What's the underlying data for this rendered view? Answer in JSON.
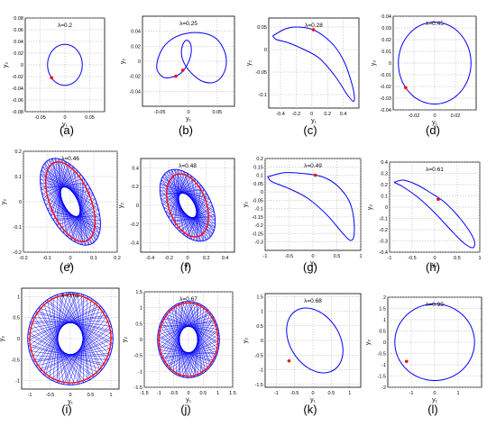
{
  "figure": {
    "panel_labels": [
      "(a)",
      "(b)",
      "(c)",
      "(d)",
      "(e)",
      "(f)",
      "(g)",
      "(h)",
      "(i)",
      "(j)",
      "(k)",
      "(l)"
    ],
    "colors": {
      "curve": "#0000ff",
      "section": "#ff0000",
      "grid": "#b0b0b0",
      "axis": "#000000"
    }
  },
  "chart_data": [
    {
      "type": "line",
      "panel": "(a)",
      "title": "λ=0.2",
      "xlabel": "y₁",
      "ylabel": "y₂",
      "xlim": [
        -0.08,
        0.08
      ],
      "ylim": [
        -0.08,
        0.08
      ],
      "xticks": [
        -0.05,
        0,
        0.05
      ],
      "yticks": [
        -0.08,
        -0.06,
        -0.04,
        -0.02,
        0,
        0.02,
        0.04,
        0.06,
        0.08
      ],
      "xtick_labels": [
        "-0.05",
        "0",
        "0.05"
      ],
      "ytick_labels": [
        "-0.08",
        "-0.06",
        "-0.04",
        "-0.02",
        "0",
        "0.02",
        "0.04",
        "0.06",
        "0.08"
      ],
      "curve": {
        "shape": "ellipse",
        "cx": 0.0,
        "cy": 0.0,
        "rx": 0.035,
        "ry": 0.035
      },
      "marker": [
        -0.027,
        -0.022
      ],
      "grid": true
    },
    {
      "type": "line",
      "panel": "(b)",
      "title": "λ=0.25",
      "xlabel": "y₁",
      "ylabel": "y₂",
      "xlim": [
        -0.08,
        0.08
      ],
      "ylim": [
        -0.06,
        0.06
      ],
      "xticks": [
        -0.05,
        0,
        0.05
      ],
      "yticks": [
        -0.04,
        -0.02,
        0,
        0.02,
        0.04
      ],
      "xtick_labels": [
        "-0.05",
        "0",
        "0.05"
      ],
      "ytick_labels": [
        "-0.04",
        "-0.02",
        "0",
        "0.02",
        "0.04"
      ],
      "curve": {
        "shape": "path",
        "points": [
          [
            -0.022,
            -0.02
          ],
          [
            -0.042,
            -0.022
          ],
          [
            -0.055,
            -0.01
          ],
          [
            -0.05,
            0.01
          ],
          [
            -0.035,
            0.026
          ],
          [
            -0.01,
            0.036
          ],
          [
            0.02,
            0.038
          ],
          [
            0.045,
            0.032
          ],
          [
            0.06,
            0.018
          ],
          [
            0.066,
            0.0
          ],
          [
            0.06,
            -0.018
          ],
          [
            0.045,
            -0.028
          ],
          [
            0.025,
            -0.027
          ],
          [
            0.008,
            -0.018
          ],
          [
            -0.005,
            -0.006
          ],
          [
            -0.012,
            0.008
          ],
          [
            -0.01,
            0.022
          ],
          [
            -0.003,
            0.028
          ],
          [
            0.004,
            0.022
          ],
          [
            0.004,
            0.008
          ],
          [
            -0.003,
            -0.006
          ],
          [
            -0.012,
            -0.015
          ],
          [
            -0.022,
            -0.02
          ]
        ]
      },
      "marker": [
        -0.022,
        -0.02
      ],
      "marker2": [
        -0.01,
        -0.012
      ],
      "grid": true
    },
    {
      "type": "line",
      "panel": "(c)",
      "title": "λ=0.28",
      "xlabel": "y₁",
      "ylabel": "y₂",
      "xlim": [
        -0.55,
        0.6
      ],
      "ylim": [
        -0.13,
        0.07
      ],
      "xticks": [
        -0.4,
        -0.2,
        0,
        0.2,
        0.4
      ],
      "yticks": [
        -0.1,
        -0.05,
        0,
        0.05
      ],
      "xtick_labels": [
        "-0.4",
        "-0.2",
        "0",
        "0.2",
        "0.4"
      ],
      "ytick_labels": [
        "-0.1",
        "-0.05",
        "0",
        "0.05"
      ],
      "curve": {
        "shape": "path",
        "points": [
          [
            -0.5,
            0.03
          ],
          [
            -0.35,
            0.045
          ],
          [
            -0.2,
            0.05
          ],
          [
            0.0,
            0.045
          ],
          [
            0.15,
            0.03
          ],
          [
            0.3,
            0.005
          ],
          [
            0.42,
            -0.03
          ],
          [
            0.5,
            -0.07
          ],
          [
            0.54,
            -0.1
          ],
          [
            0.53,
            -0.115
          ],
          [
            0.45,
            -0.1
          ],
          [
            0.3,
            -0.06
          ],
          [
            0.1,
            -0.02
          ],
          [
            -0.1,
            0.0
          ],
          [
            -0.3,
            0.015
          ],
          [
            -0.45,
            0.022
          ],
          [
            -0.5,
            0.03
          ]
        ]
      },
      "marker": [
        0.02,
        0.044
      ],
      "grid": true
    },
    {
      "type": "line",
      "panel": "(d)",
      "title": "λ=0.45",
      "xlabel": "y₁",
      "ylabel": "y₂",
      "xlim": [
        -0.04,
        0.04
      ],
      "ylim": [
        -0.04,
        0.04
      ],
      "xticks": [
        -0.02,
        0,
        0.02
      ],
      "yticks": [
        -0.04,
        -0.03,
        -0.02,
        -0.01,
        0,
        0.01,
        0.02,
        0.03,
        0.04
      ],
      "xtick_labels": [
        "-0.02",
        "0",
        "0.02"
      ],
      "ytick_labels": [
        "-0.04",
        "-0.03",
        "-0.02",
        "-0.01",
        "0",
        "0.01",
        "0.02",
        "0.03",
        "0.04"
      ],
      "curve": {
        "shape": "ellipse",
        "cx": 0.0,
        "cy": 0.0,
        "rx": 0.035,
        "ry": 0.035
      },
      "marker": [
        -0.028,
        -0.021
      ],
      "grid": true
    },
    {
      "type": "area",
      "panel": "(e)",
      "title": "λ=0.46",
      "xlabel": "y₁",
      "ylabel": "y₂",
      "xlim": [
        -0.2,
        0.2
      ],
      "ylim": [
        -0.2,
        0.2
      ],
      "xticks": [
        -0.2,
        -0.1,
        0,
        0.1,
        0.2
      ],
      "yticks": [
        -0.2,
        -0.1,
        0,
        0.1,
        0.2
      ],
      "xtick_labels": [
        "-0.2",
        "-0.1",
        "0",
        "0.1",
        "0.2"
      ],
      "ytick_labels": [
        "-0.2",
        "-0.1",
        "0",
        "0.1",
        "0.2"
      ],
      "torus": {
        "cx": 0.0,
        "cy": 0.0,
        "rx": 0.1,
        "ry": 0.19,
        "rotate": 30
      },
      "section": {
        "rx": 0.085,
        "ry": 0.17,
        "rotate": 25
      },
      "grid": true
    },
    {
      "type": "area",
      "panel": "(f)",
      "title": "λ=0.48",
      "xlabel": "y₁",
      "ylabel": "y₂",
      "xlim": [
        -0.5,
        0.5
      ],
      "ylim": [
        -0.5,
        0.5
      ],
      "xticks": [
        -0.4,
        -0.2,
        0,
        0.2,
        0.4
      ],
      "yticks": [
        -0.4,
        -0.2,
        0,
        0.2,
        0.4
      ],
      "xtick_labels": [
        "-0.4",
        "-0.2",
        "0",
        "0.2",
        "0.4"
      ],
      "ytick_labels": [
        "-0.4",
        "-0.2",
        "0",
        "0.2",
        "0.4"
      ],
      "torus": {
        "cx": 0.0,
        "cy": 0.0,
        "rx": 0.24,
        "ry": 0.42,
        "rotate": 30
      },
      "section": {
        "rx": 0.2,
        "ry": 0.35,
        "rotate": 20
      },
      "grid": true
    },
    {
      "type": "line",
      "panel": "(g)",
      "title": "λ=0.49",
      "xlabel": "y₁",
      "ylabel": "y₂",
      "xlim": [
        -1,
        1
      ],
      "ylim": [
        -0.35,
        0.2
      ],
      "xticks": [
        -1,
        -0.5,
        0,
        0.5,
        1
      ],
      "yticks": [
        -0.3,
        -0.25,
        -0.2,
        -0.15,
        -0.1,
        -0.05,
        0,
        0.05,
        0.1,
        0.15,
        0.2
      ],
      "xtick_labels": [
        "-1",
        "-0.5",
        "0",
        "0.5",
        "1"
      ],
      "ytick_labels": [
        "-0.3",
        "-0.25",
        "-0.2",
        "-0.15",
        "-0.1",
        "-0.05",
        "0",
        "0.05",
        "0.1",
        "0.15",
        "0.2"
      ],
      "curve": {
        "shape": "path",
        "points": [
          [
            -0.95,
            0.09
          ],
          [
            -0.6,
            0.115
          ],
          [
            -0.2,
            0.11
          ],
          [
            0.2,
            0.09
          ],
          [
            0.5,
            0.04
          ],
          [
            0.75,
            -0.05
          ],
          [
            0.85,
            -0.15
          ],
          [
            0.86,
            -0.26
          ],
          [
            0.78,
            -0.29
          ],
          [
            0.6,
            -0.24
          ],
          [
            0.3,
            -0.14
          ],
          [
            -0.1,
            -0.04
          ],
          [
            -0.5,
            0.02
          ],
          [
            -0.85,
            0.06
          ],
          [
            -0.95,
            0.09
          ]
        ]
      },
      "marker": [
        0.05,
        0.1
      ],
      "grid": true
    },
    {
      "type": "line",
      "panel": "(h)",
      "title": "λ=0.61",
      "xlabel": "y₁",
      "ylabel": "y₂",
      "xlim": [
        -1,
        1
      ],
      "ylim": [
        -0.4,
        0.4
      ],
      "xticks": [
        -1,
        -0.5,
        0,
        0.5,
        1
      ],
      "yticks": [
        -0.4,
        -0.3,
        -0.2,
        -0.1,
        0,
        0.1,
        0.2,
        0.3,
        0.4
      ],
      "xtick_labels": [
        "-1",
        "-0.5",
        "0",
        "0.5",
        "1"
      ],
      "ytick_labels": [
        "-0.4",
        "-0.3",
        "-0.2",
        "-0.1",
        "0",
        "0.1",
        "0.2",
        "0.3",
        "0.4"
      ],
      "curve": {
        "shape": "path",
        "points": [
          [
            -0.9,
            0.22
          ],
          [
            -0.7,
            0.24
          ],
          [
            -0.4,
            0.2
          ],
          [
            -0.1,
            0.13
          ],
          [
            0.2,
            0.05
          ],
          [
            0.5,
            -0.07
          ],
          [
            0.75,
            -0.2
          ],
          [
            0.88,
            -0.3
          ],
          [
            0.85,
            -0.36
          ],
          [
            0.65,
            -0.32
          ],
          [
            0.35,
            -0.2
          ],
          [
            0.0,
            -0.05
          ],
          [
            -0.35,
            0.08
          ],
          [
            -0.7,
            0.18
          ],
          [
            -0.9,
            0.22
          ]
        ]
      },
      "marker": [
        0.08,
        0.07
      ],
      "grid": true
    },
    {
      "type": "area",
      "panel": "(i)",
      "title": "λ=0.62",
      "xlabel": "y₁",
      "ylabel": "y₂",
      "xlim": [
        -1.2,
        1.2
      ],
      "ylim": [
        -1.2,
        1.2
      ],
      "xticks": [
        -1,
        -0.5,
        0,
        0.5,
        1
      ],
      "yticks": [
        -1,
        -0.5,
        0,
        0.5,
        1
      ],
      "xtick_labels": [
        "-1",
        "-0.5",
        "0",
        "0.5",
        "1"
      ],
      "ytick_labels": [
        "-1",
        "-0.5",
        "0",
        "0.5",
        "1"
      ],
      "torus": {
        "cx": 0.0,
        "cy": 0.0,
        "rx": 1.05,
        "ry": 1.1,
        "rotate": 0
      },
      "section": {
        "rx": 1.0,
        "ry": 1.05,
        "rotate": 0
      },
      "grid": true
    },
    {
      "type": "area",
      "panel": "(j)",
      "title": "λ=0.67",
      "xlabel": "y₁",
      "ylabel": "y₂",
      "xlim": [
        -1.5,
        1.5
      ],
      "ylim": [
        -1.5,
        1.5
      ],
      "xticks": [
        -1.5,
        -1,
        -0.5,
        0,
        0.5,
        1,
        1.5
      ],
      "yticks": [
        -1.5,
        -1,
        -0.5,
        0,
        0.5,
        1,
        1.5
      ],
      "xtick_labels": [
        "-1.5",
        "-1",
        "-0.5",
        "0",
        "0.5",
        "1",
        "1.5"
      ],
      "ytick_labels": [
        "-1.5",
        "-1",
        "-0.5",
        "0",
        "0.5",
        "1",
        "1.5"
      ],
      "torus": {
        "cx": 0.0,
        "cy": 0.0,
        "rx": 1.05,
        "ry": 1.2,
        "rotate": 0
      },
      "section": {
        "rx": 1.0,
        "ry": 1.15,
        "rotate": 0
      },
      "grid": true
    },
    {
      "type": "line",
      "panel": "(k)",
      "title": "λ=0.68",
      "xlabel": "y₁",
      "ylabel": "y₂",
      "xlim": [
        -1.3,
        1.3
      ],
      "ylim": [
        -1.6,
        1.6
      ],
      "xticks": [
        -1,
        -0.5,
        0,
        0.5,
        1
      ],
      "yticks": [
        -1.5,
        -1,
        -0.5,
        0,
        0.5,
        1,
        1.5
      ],
      "xtick_labels": [
        "-1",
        "-0.5",
        "0",
        "0.5",
        "1"
      ],
      "ytick_labels": [
        "-1.5",
        "-1",
        "-0.5",
        "0",
        "0.5",
        "1",
        "1.5"
      ],
      "curve": {
        "shape": "ellipse",
        "cx": 0.05,
        "cy": 0.0,
        "rx": 0.7,
        "ry": 1.15,
        "rotate": 20
      },
      "marker": [
        -0.65,
        -0.7
      ],
      "grid": true
    },
    {
      "type": "line",
      "panel": "(l)",
      "title": "λ=0.99",
      "xlabel": "y₁",
      "ylabel": "y₂",
      "xlim": [
        -2,
        2
      ],
      "ylim": [
        -2,
        2
      ],
      "xticks": [
        -1,
        0,
        1
      ],
      "yticks": [
        -2,
        -1.5,
        -1,
        -0.5,
        0,
        0.5,
        1,
        1.5,
        2
      ],
      "xtick_labels": [
        "-1",
        "0",
        "1"
      ],
      "ytick_labels": [
        "-2",
        "-1.5",
        "-1",
        "-0.5",
        "0",
        "0.5",
        "1",
        "1.5",
        "2"
      ],
      "curve": {
        "shape": "ellipse",
        "cx": 0.0,
        "cy": 0.0,
        "rx": 1.7,
        "ry": 1.7
      },
      "marker": [
        -1.2,
        -0.85
      ],
      "grid": true
    }
  ]
}
